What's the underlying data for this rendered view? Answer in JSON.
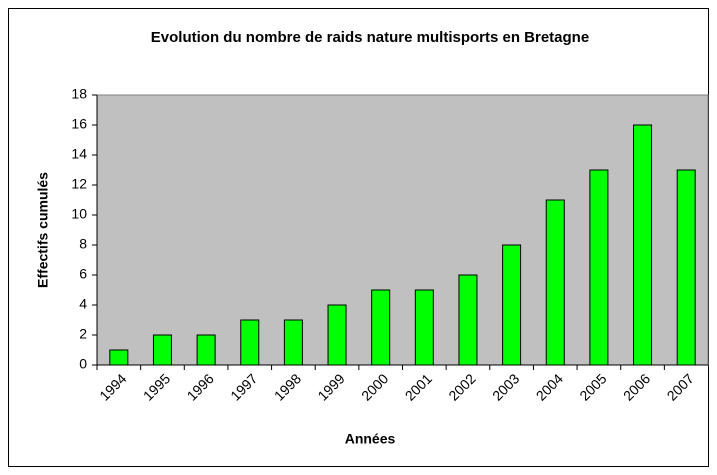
{
  "chart_data": {
    "type": "bar",
    "title": "Evolution du nombre de raids nature multisports en Bretagne",
    "x_label": "Années",
    "y_label": "Effectifs cumulés",
    "categories": [
      "1994",
      "1995",
      "1996",
      "1997",
      "1998",
      "1999",
      "2000",
      "2001",
      "2002",
      "2003",
      "2004",
      "2005",
      "2006",
      "2007"
    ],
    "values": [
      1,
      2,
      2,
      3,
      3,
      4,
      5,
      5,
      6,
      8,
      11,
      13,
      16,
      13
    ],
    "color": "#00ff00",
    "plot_background": "#c0c0c0",
    "ylim": [
      0,
      18
    ],
    "yticks": [
      0,
      2,
      4,
      6,
      8,
      10,
      12,
      14,
      16,
      18
    ],
    "grid": false
  }
}
